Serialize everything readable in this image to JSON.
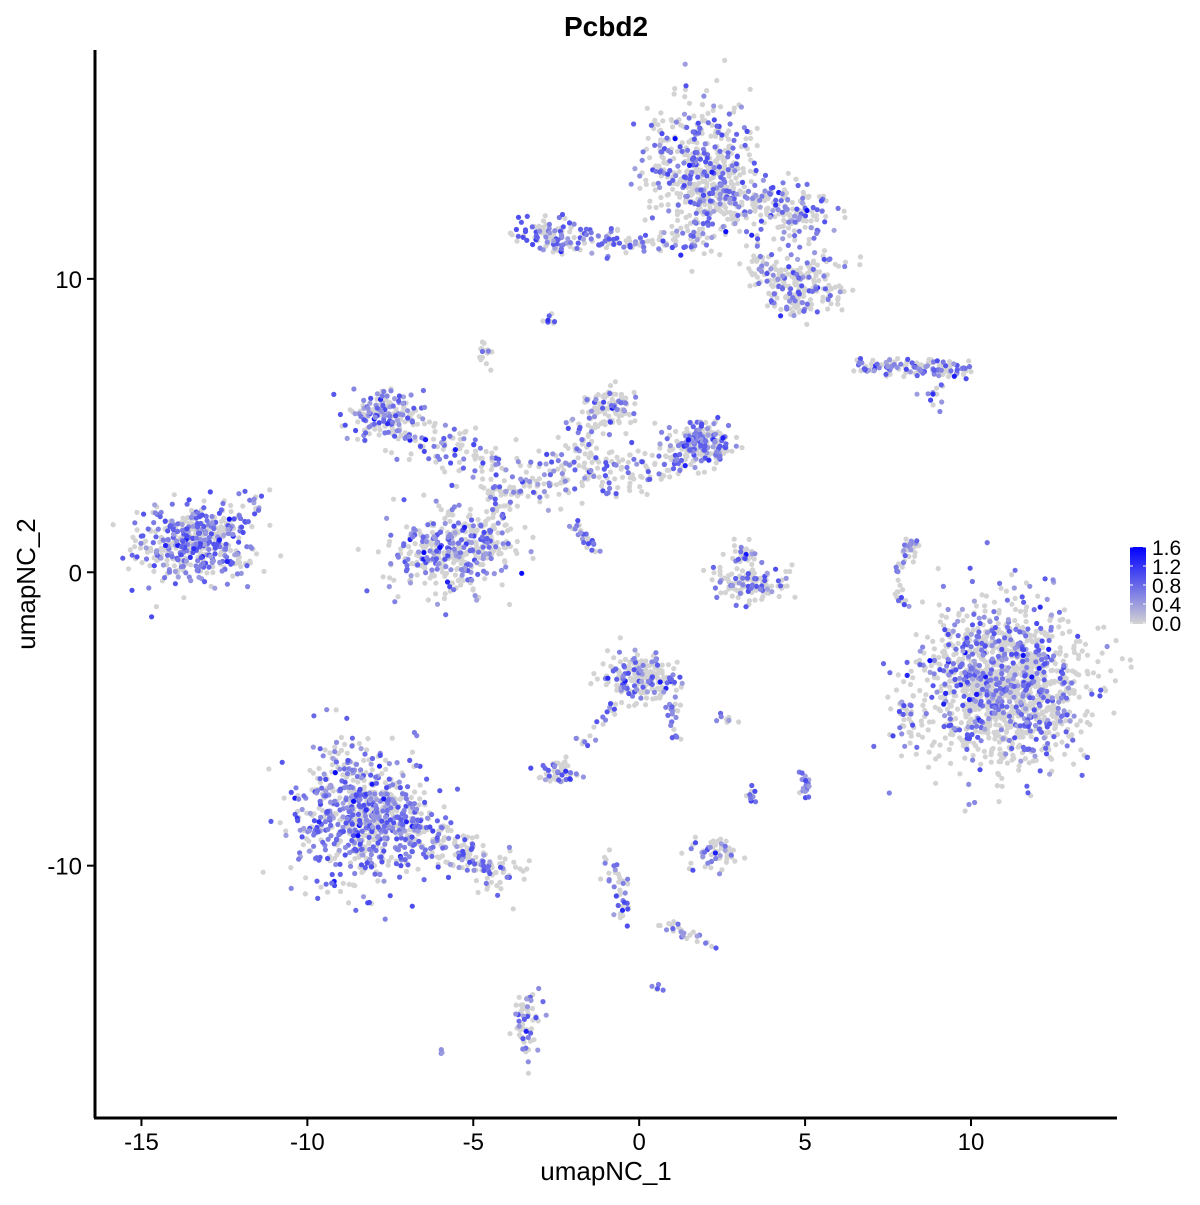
{
  "chart_data": {
    "type": "scatter",
    "title": "Pcbd2",
    "xlabel": "umapNC_1",
    "ylabel": "umapNC_2",
    "xlim": [
      -16.4,
      14.4
    ],
    "ylim": [
      -18.6,
      17.8
    ],
    "x_ticks": [
      -15,
      -10,
      -5,
      0,
      5,
      10
    ],
    "y_ticks": [
      -10,
      0,
      10
    ],
    "grid": false,
    "legend": {
      "placement": "right",
      "ticks": [
        "0.0",
        "0.4",
        "0.8",
        "1.2",
        "1.6"
      ],
      "min": 0,
      "max": 1.6,
      "low_color": "#d3d3d3",
      "high_color": "#0000ff"
    },
    "clusters": [
      {
        "kind": "blob",
        "cx": -13.3,
        "cy": 1.0,
        "sx": 0.9,
        "sy": 0.6,
        "n": 420,
        "expr": 0.55
      },
      {
        "kind": "line",
        "x0": -14.5,
        "y0": 0.6,
        "x1": -11.3,
        "y1": 2.6,
        "w": 0.25,
        "n": 60,
        "expr": 0.5
      },
      {
        "kind": "blob",
        "cx": 1.9,
        "cy": 13.6,
        "sx": 0.8,
        "sy": 1.2,
        "n": 500,
        "expr": 0.35
      },
      {
        "kind": "line",
        "x0": 2.2,
        "y0": 13,
        "x1": 5.3,
        "y1": 12,
        "w": 0.5,
        "n": 250,
        "expr": 0.35
      },
      {
        "kind": "blob",
        "cx": 5.0,
        "cy": 9.9,
        "sx": 0.6,
        "sy": 0.5,
        "n": 150,
        "expr": 0.25
      },
      {
        "kind": "line",
        "x0": 3.5,
        "y0": 11,
        "x1": 4.8,
        "y1": 8.8,
        "w": 0.35,
        "n": 90,
        "expr": 0.3
      },
      {
        "kind": "blob",
        "cx": -2.6,
        "cy": 11.5,
        "sx": 0.6,
        "sy": 0.3,
        "n": 110,
        "expr": 0.5
      },
      {
        "kind": "line",
        "x0": -1.5,
        "y0": 11.2,
        "x1": 1.8,
        "y1": 11.3,
        "w": 0.2,
        "n": 70,
        "expr": 0.45
      },
      {
        "kind": "blob",
        "cx": -2.7,
        "cy": 8.6,
        "sx": 0.1,
        "sy": 0.1,
        "n": 8,
        "expr": 0.5
      },
      {
        "kind": "blob",
        "cx": -4.6,
        "cy": 7.4,
        "sx": 0.15,
        "sy": 0.2,
        "n": 15,
        "expr": 0.5
      },
      {
        "kind": "line",
        "x0": 6.6,
        "y0": 7.0,
        "x1": 10,
        "y1": 6.9,
        "w": 0.15,
        "n": 140,
        "expr": 0.5
      },
      {
        "kind": "blob",
        "cx": 8.8,
        "cy": 6.1,
        "sx": 0.3,
        "sy": 0.2,
        "n": 12,
        "expr": 0.6
      },
      {
        "kind": "blob",
        "cx": -7.7,
        "cy": 5.4,
        "sx": 0.5,
        "sy": 0.4,
        "n": 140,
        "expr": 0.5
      },
      {
        "kind": "line",
        "x0": -7.5,
        "y0": 5.2,
        "x1": -3.5,
        "y1": 3.0,
        "w": 0.45,
        "n": 150,
        "expr": 0.35
      },
      {
        "kind": "line",
        "x0": -3.5,
        "y0": 3.0,
        "x1": 1.5,
        "y1": 3.9,
        "w": 0.4,
        "n": 180,
        "expr": 0.4
      },
      {
        "kind": "line",
        "x0": -1.0,
        "y0": 6.0,
        "x1": -2.5,
        "y1": 3.2,
        "w": 0.35,
        "n": 80,
        "expr": 0.3
      },
      {
        "kind": "blob",
        "cx": 1.9,
        "cy": 4.4,
        "sx": 0.5,
        "sy": 0.35,
        "n": 180,
        "expr": 0.45
      },
      {
        "kind": "blob",
        "cx": -0.8,
        "cy": 5.6,
        "sx": 0.4,
        "sy": 0.35,
        "n": 80,
        "expr": 0.35
      },
      {
        "kind": "blob",
        "cx": -5.7,
        "cy": 0.8,
        "sx": 0.9,
        "sy": 0.7,
        "n": 380,
        "expr": 0.4
      },
      {
        "kind": "line",
        "x0": -4.3,
        "y0": 3.0,
        "x1": -4.3,
        "y1": 1.0,
        "w": 0.3,
        "n": 60,
        "expr": 0.3
      },
      {
        "kind": "line",
        "x0": -2.0,
        "y0": 1.6,
        "x1": -1.3,
        "y1": 0.8,
        "w": 0.1,
        "n": 25,
        "expr": 0.7
      },
      {
        "kind": "blob",
        "cx": 3.4,
        "cy": -0.4,
        "sx": 0.6,
        "sy": 0.3,
        "n": 120,
        "expr": 0.3
      },
      {
        "kind": "blob",
        "cx": 3.2,
        "cy": 0.6,
        "sx": 0.25,
        "sy": 0.35,
        "n": 30,
        "expr": 0.5
      },
      {
        "kind": "line",
        "x0": 7.8,
        "y0": 0,
        "x1": 8.3,
        "y1": 1.1,
        "w": 0.12,
        "n": 35,
        "expr": 0.5
      },
      {
        "kind": "line",
        "x0": 7.8,
        "y0": -0.3,
        "x1": 8.1,
        "y1": -1.3,
        "w": 0.1,
        "n": 12,
        "expr": 0.3
      },
      {
        "kind": "blob",
        "cx": 11.0,
        "cy": -3.9,
        "sx": 1.2,
        "sy": 1.3,
        "n": 1400,
        "expr": 0.3
      },
      {
        "kind": "blob",
        "cx": 8.1,
        "cy": -5.0,
        "sx": 0.3,
        "sy": 0.5,
        "n": 40,
        "expr": 0.3
      },
      {
        "kind": "blob",
        "cx": 0.1,
        "cy": -3.6,
        "sx": 0.55,
        "sy": 0.4,
        "n": 200,
        "expr": 0.35
      },
      {
        "kind": "line",
        "x0": 0.8,
        "y0": -4,
        "x1": 1.2,
        "y1": -5.7,
        "w": 0.1,
        "n": 20,
        "expr": 0.5
      },
      {
        "kind": "line",
        "x0": -0.7,
        "y0": -4.5,
        "x1": -1.8,
        "y1": -6.0,
        "w": 0.15,
        "n": 20,
        "expr": 0.4
      },
      {
        "kind": "blob",
        "cx": -2.5,
        "cy": -6.8,
        "sx": 0.35,
        "sy": 0.2,
        "n": 50,
        "expr": 0.4
      },
      {
        "kind": "blob",
        "cx": -8.4,
        "cy": -8.3,
        "sx": 0.95,
        "sy": 1.2,
        "n": 700,
        "expr": 0.55
      },
      {
        "kind": "line",
        "x0": -8.0,
        "y0": -8.0,
        "x1": -3.9,
        "y1": -10.4,
        "w": 0.4,
        "n": 260,
        "expr": 0.4
      },
      {
        "kind": "blob",
        "cx": 5.0,
        "cy": -7.3,
        "sx": 0.1,
        "sy": 0.2,
        "n": 20,
        "expr": 0.95
      },
      {
        "kind": "blob",
        "cx": 3.4,
        "cy": -7.6,
        "sx": 0.08,
        "sy": 0.2,
        "n": 10,
        "expr": 0.4
      },
      {
        "kind": "blob",
        "cx": 2.3,
        "cy": -9.6,
        "sx": 0.4,
        "sy": 0.3,
        "n": 60,
        "expr": 0.4
      },
      {
        "kind": "line",
        "x0": -1.0,
        "y0": -9.5,
        "x1": -0.3,
        "y1": -12.0,
        "w": 0.15,
        "n": 40,
        "expr": 0.5
      },
      {
        "kind": "line",
        "x0": 0.6,
        "y0": -11.9,
        "x1": 2.3,
        "y1": -12.7,
        "w": 0.15,
        "n": 25,
        "expr": 0.4
      },
      {
        "kind": "blob",
        "cx": 0.6,
        "cy": -14.2,
        "sx": 0.08,
        "sy": 0.08,
        "n": 5,
        "expr": 0.6
      },
      {
        "kind": "blob",
        "cx": -3.4,
        "cy": -15.2,
        "sx": 0.25,
        "sy": 0.6,
        "n": 60,
        "expr": 0.45
      },
      {
        "kind": "blob",
        "cx": -6.0,
        "cy": -16.3,
        "sx": 0.05,
        "sy": 0.05,
        "n": 3,
        "expr": 0.9
      },
      {
        "kind": "blob",
        "cx": 2.5,
        "cy": -5.0,
        "sx": 0.2,
        "sy": 0.1,
        "n": 8,
        "expr": 0.5
      }
    ]
  }
}
